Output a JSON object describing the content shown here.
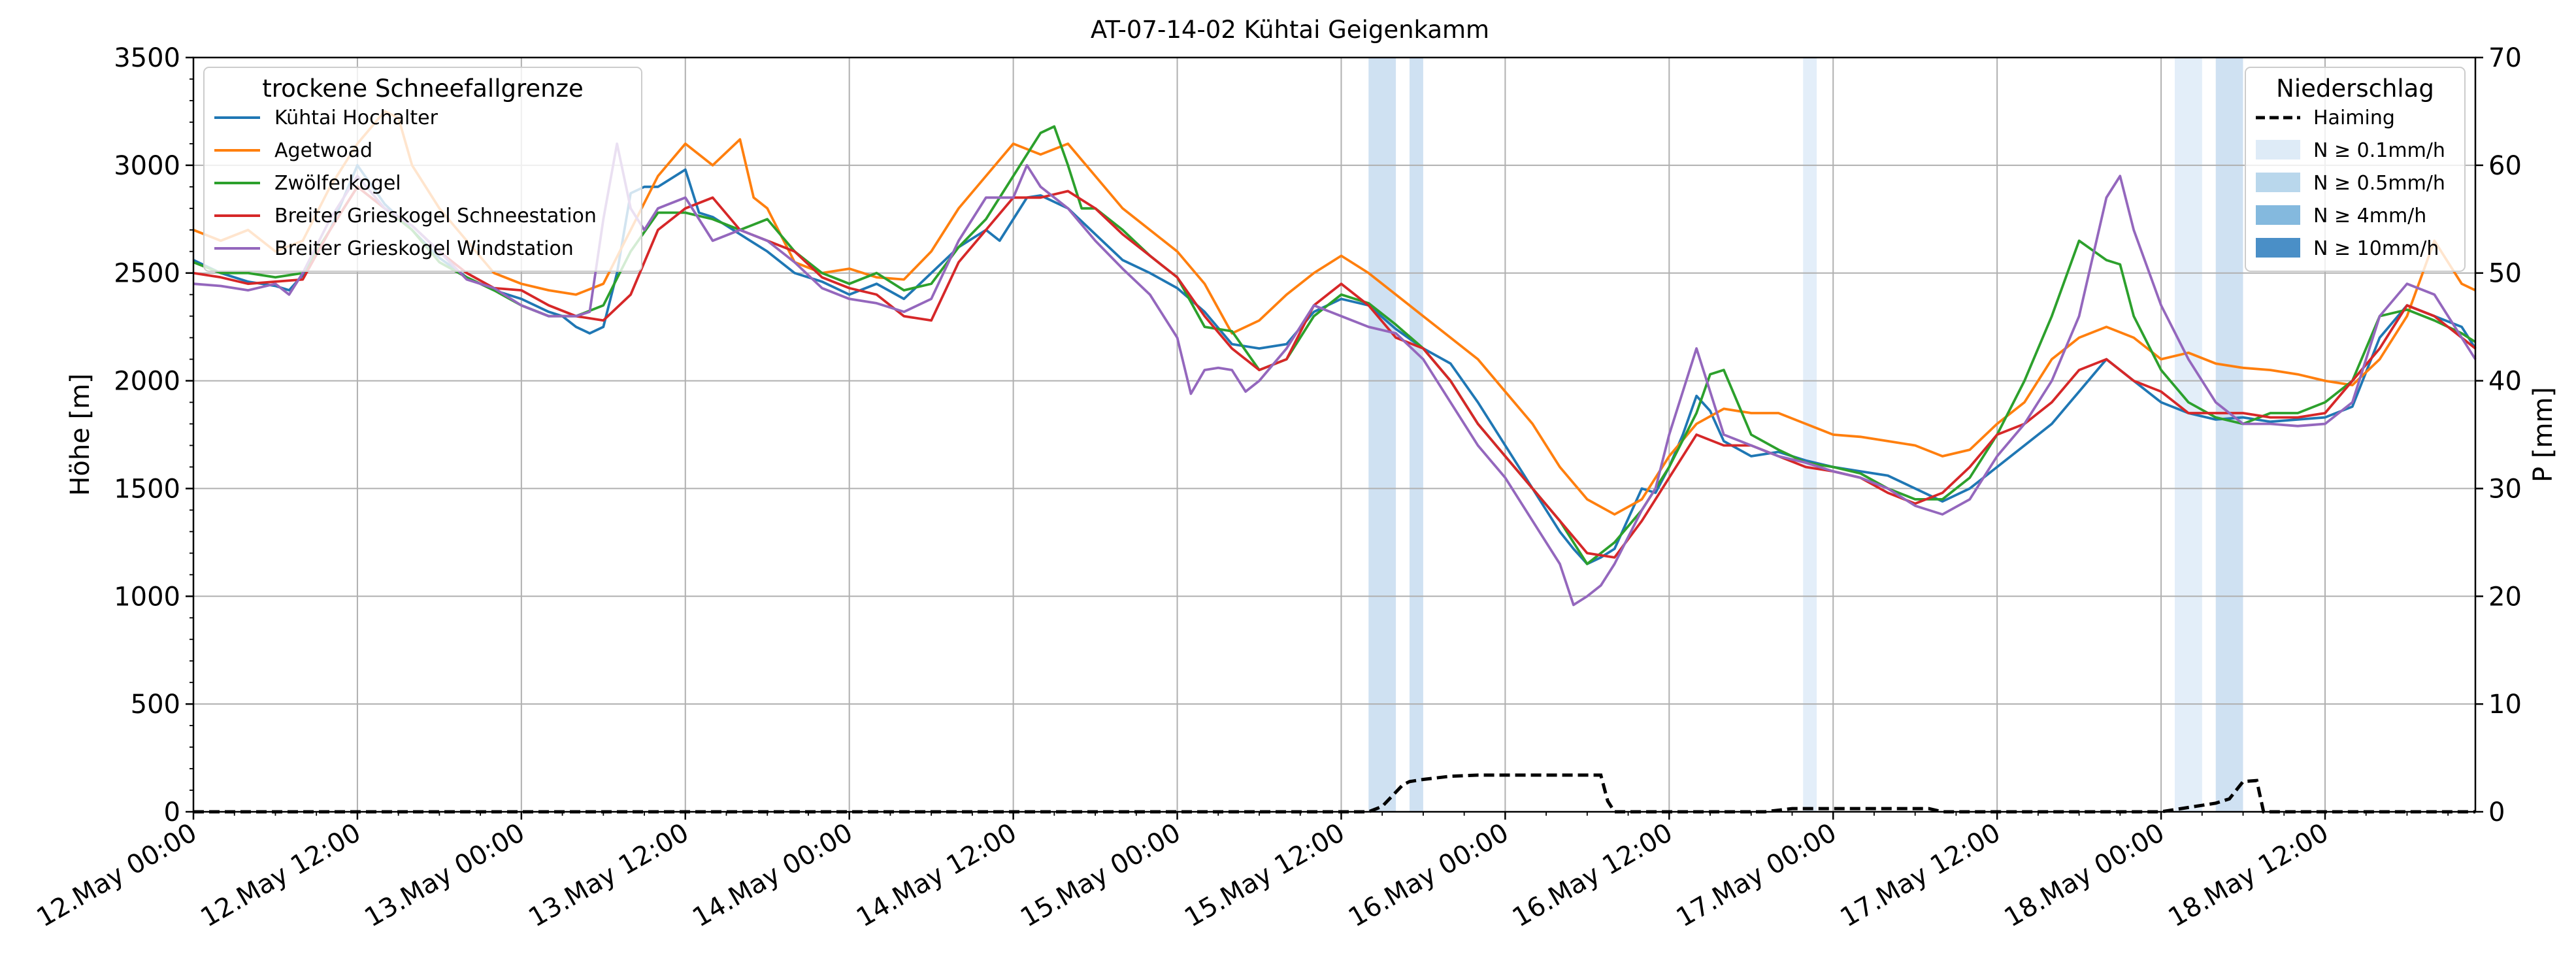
{
  "chart_data": {
    "type": "line",
    "title": "AT-07-14-02 Kühtai Geigenkamm",
    "ylabel": "Höhe [m]",
    "y2label": "P [mm]",
    "ylim": [
      0,
      3500
    ],
    "y2lim": [
      0,
      70
    ],
    "xlim": [
      0,
      167
    ],
    "x_unit": "hours since 12.May 00:00",
    "yticks": [
      0,
      500,
      1000,
      1500,
      2000,
      2500,
      3000,
      3500
    ],
    "y2ticks": [
      0,
      10,
      20,
      30,
      40,
      50,
      60,
      70
    ],
    "xtick_positions": [
      0,
      12,
      24,
      36,
      48,
      60,
      72,
      84,
      96,
      108,
      120,
      132,
      144,
      156
    ],
    "xtick_labels": [
      "12.May 00:00",
      "12.May 12:00",
      "13.May 00:00",
      "13.May 12:00",
      "14.May 00:00",
      "14.May 12:00",
      "15.May 00:00",
      "15.May 12:00",
      "16.May 00:00",
      "16.May 12:00",
      "17.May 00:00",
      "17.May 12:00",
      "18.May 00:00",
      "18.May 12:00"
    ],
    "grid": true,
    "legend_left": {
      "title": "trockene Schneefallgrenze",
      "placement": "upper-left"
    },
    "legend_right": {
      "title": "Niederschlag",
      "placement": "upper-right",
      "entries": [
        {
          "label": "Haiming",
          "kind": "dashed-line",
          "color": "#000000"
        },
        {
          "label": "N ≥ 0.1mm/h",
          "kind": "patch",
          "color": "#deebf7"
        },
        {
          "label": "N ≥ 0.5mm/h",
          "kind": "patch",
          "color": "#b9d7ec"
        },
        {
          "label": "N ≥ 4mm/h",
          "kind": "patch",
          "color": "#84b9de"
        },
        {
          "label": "N ≥ 10mm/h",
          "kind": "patch",
          "color": "#4a8fc7"
        }
      ]
    },
    "precip_bands": [
      {
        "start": 86,
        "end": 88,
        "level": "N ≥ 0.5mm/h",
        "color": "#cfe1f2"
      },
      {
        "start": 89,
        "end": 90,
        "level": "N ≥ 0.5mm/h",
        "color": "#cfe1f2"
      },
      {
        "start": 117.8,
        "end": 118.8,
        "level": "N ≥ 0.1mm/h",
        "color": "#e3eef9"
      },
      {
        "start": 145,
        "end": 147,
        "level": "N ≥ 0.1mm/h",
        "color": "#e3eef9"
      },
      {
        "start": 148,
        "end": 150,
        "level": "N ≥ 0.5mm/h",
        "color": "#cfe1f2"
      }
    ],
    "precip_series": {
      "name": "Haiming",
      "axis": "right",
      "style": "dashed",
      "color": "#000000",
      "x": [
        0,
        86,
        87,
        88.5,
        89,
        90,
        92,
        94,
        100,
        103,
        103.5,
        104,
        115,
        117,
        119,
        127,
        128,
        144,
        146,
        148,
        149,
        150,
        151,
        151.5,
        167
      ],
      "values": [
        0,
        0,
        0.5,
        2.5,
        2.8,
        3.0,
        3.3,
        3.4,
        3.4,
        3.4,
        1.0,
        0,
        0,
        0.3,
        0.3,
        0.3,
        0,
        0,
        0.4,
        0.8,
        1.2,
        2.8,
        2.9,
        0,
        0
      ]
    },
    "series": [
      {
        "name": "Kühtai Hochalter",
        "color": "#1f77b4",
        "x": [
          0,
          2,
          4,
          6,
          7,
          8,
          10,
          12,
          14,
          16,
          18,
          20,
          22,
          24,
          26,
          27,
          28,
          29,
          30,
          31,
          32,
          33,
          34,
          36,
          37,
          38,
          39,
          40,
          42,
          44,
          46,
          48,
          50,
          52,
          54,
          56,
          58,
          59,
          60,
          61,
          62,
          64,
          66,
          68,
          70,
          72,
          74,
          76,
          78,
          80,
          82,
          84,
          86,
          88,
          90,
          92,
          94,
          96,
          98,
          99,
          100,
          101,
          102,
          103,
          104,
          106,
          107,
          108,
          109,
          110,
          111,
          112,
          114,
          116,
          118,
          120,
          122,
          124,
          126,
          128,
          130,
          132,
          134,
          136,
          138,
          140,
          142,
          144,
          146,
          148,
          150,
          152,
          154,
          156,
          158,
          160,
          162,
          164,
          166,
          167
        ],
        "values": [
          2560,
          2500,
          2460,
          2440,
          2420,
          2490,
          2700,
          3000,
          2820,
          2700,
          2570,
          2480,
          2420,
          2380,
          2320,
          2300,
          2250,
          2220,
          2250,
          2500,
          2870,
          2900,
          2900,
          2980,
          2780,
          2760,
          2720,
          2680,
          2600,
          2500,
          2460,
          2400,
          2450,
          2380,
          2500,
          2620,
          2700,
          2650,
          2750,
          2850,
          2860,
          2800,
          2680,
          2560,
          2500,
          2430,
          2320,
          2170,
          2150,
          2170,
          2320,
          2380,
          2350,
          2240,
          2150,
          2080,
          1900,
          1700,
          1500,
          1400,
          1300,
          1220,
          1150,
          1180,
          1220,
          1500,
          1480,
          1600,
          1750,
          1930,
          1860,
          1720,
          1650,
          1670,
          1630,
          1600,
          1580,
          1560,
          1500,
          1440,
          1500,
          1600,
          1700,
          1800,
          1950,
          2100,
          2000,
          1900,
          1850,
          1820,
          1830,
          1810,
          1820,
          1830,
          1880,
          2200,
          2350,
          2300,
          2250,
          2150
        ]
      },
      {
        "name": "Agetwoad",
        "color": "#ff7f0e",
        "x": [
          0,
          2,
          4,
          6,
          8,
          10,
          12,
          14,
          15,
          16,
          18,
          20,
          22,
          24,
          26,
          28,
          30,
          32,
          34,
          36,
          38,
          40,
          41,
          42,
          44,
          46,
          48,
          50,
          52,
          54,
          56,
          58,
          60,
          62,
          64,
          66,
          68,
          70,
          72,
          74,
          76,
          78,
          80,
          82,
          84,
          86,
          88,
          90,
          92,
          94,
          96,
          98,
          100,
          102,
          104,
          106,
          108,
          110,
          112,
          114,
          116,
          118,
          120,
          122,
          124,
          126,
          128,
          130,
          132,
          134,
          136,
          138,
          140,
          142,
          144,
          146,
          148,
          150,
          152,
          154,
          156,
          158,
          160,
          162,
          164,
          166,
          167
        ],
        "values": [
          2700,
          2650,
          2700,
          2600,
          2650,
          2900,
          3100,
          3250,
          3220,
          3000,
          2800,
          2650,
          2500,
          2450,
          2420,
          2400,
          2450,
          2700,
          2950,
          3100,
          3000,
          3120,
          2850,
          2800,
          2550,
          2500,
          2520,
          2480,
          2470,
          2600,
          2800,
          2950,
          3100,
          3050,
          3100,
          2950,
          2800,
          2700,
          2600,
          2450,
          2220,
          2280,
          2400,
          2500,
          2580,
          2500,
          2400,
          2300,
          2200,
          2100,
          1950,
          1800,
          1600,
          1450,
          1380,
          1450,
          1650,
          1800,
          1870,
          1850,
          1850,
          1800,
          1750,
          1740,
          1720,
          1700,
          1650,
          1680,
          1800,
          1900,
          2100,
          2200,
          2250,
          2200,
          2100,
          2130,
          2080,
          2060,
          2050,
          2030,
          2000,
          1980,
          2100,
          2300,
          2650,
          2450,
          2420
        ]
      },
      {
        "name": "Zwölferkogel",
        "color": "#2ca02c",
        "x": [
          0,
          2,
          4,
          6,
          8,
          10,
          12,
          14,
          16,
          18,
          20,
          22,
          24,
          26,
          28,
          30,
          32,
          34,
          36,
          38,
          40,
          42,
          44,
          46,
          48,
          50,
          52,
          54,
          56,
          58,
          60,
          62,
          63,
          64,
          65,
          66,
          68,
          70,
          72,
          74,
          76,
          78,
          80,
          82,
          84,
          86,
          88,
          90,
          92,
          94,
          96,
          98,
          100,
          101,
          102,
          104,
          106,
          108,
          110,
          111,
          112,
          114,
          116,
          118,
          120,
          122,
          124,
          126,
          128,
          130,
          132,
          134,
          136,
          138,
          140,
          141,
          142,
          144,
          146,
          148,
          150,
          152,
          154,
          156,
          158,
          160,
          162,
          164,
          166,
          167
        ],
        "values": [
          2550,
          2500,
          2500,
          2480,
          2500,
          2700,
          2900,
          2800,
          2700,
          2550,
          2480,
          2420,
          2350,
          2300,
          2300,
          2350,
          2600,
          2780,
          2780,
          2750,
          2700,
          2750,
          2600,
          2500,
          2450,
          2500,
          2420,
          2450,
          2620,
          2750,
          2950,
          3150,
          3180,
          3000,
          2800,
          2800,
          2700,
          2580,
          2480,
          2250,
          2230,
          2050,
          2100,
          2300,
          2400,
          2360,
          2260,
          2150,
          2000,
          1800,
          1650,
          1500,
          1350,
          1250,
          1150,
          1250,
          1400,
          1600,
          1850,
          2030,
          2050,
          1750,
          1680,
          1620,
          1600,
          1570,
          1500,
          1450,
          1450,
          1550,
          1750,
          2000,
          2300,
          2650,
          2560,
          2540,
          2300,
          2050,
          1900,
          1830,
          1800,
          1850,
          1850,
          1900,
          2000,
          2300,
          2330,
          2280,
          2220,
          2180
        ]
      },
      {
        "name": "Breiter Grieskogel Schneestation",
        "color": "#d62728",
        "x": [
          0,
          2,
          4,
          6,
          8,
          10,
          12,
          14,
          16,
          18,
          20,
          22,
          24,
          26,
          28,
          30,
          32,
          34,
          36,
          38,
          40,
          42,
          44,
          46,
          48,
          50,
          52,
          54,
          56,
          58,
          60,
          62,
          64,
          66,
          68,
          70,
          72,
          74,
          76,
          78,
          80,
          82,
          84,
          86,
          88,
          90,
          92,
          94,
          96,
          98,
          100,
          102,
          104,
          106,
          108,
          110,
          112,
          114,
          116,
          118,
          120,
          122,
          124,
          126,
          128,
          130,
          132,
          134,
          136,
          138,
          140,
          142,
          144,
          146,
          148,
          150,
          152,
          154,
          156,
          158,
          160,
          162,
          164,
          166,
          167
        ],
        "values": [
          2500,
          2480,
          2450,
          2460,
          2470,
          2700,
          2900,
          2800,
          2720,
          2600,
          2500,
          2430,
          2420,
          2350,
          2300,
          2280,
          2400,
          2700,
          2800,
          2850,
          2700,
          2650,
          2600,
          2480,
          2430,
          2400,
          2300,
          2280,
          2550,
          2700,
          2850,
          2850,
          2880,
          2800,
          2680,
          2580,
          2480,
          2300,
          2150,
          2050,
          2100,
          2350,
          2450,
          2350,
          2200,
          2150,
          2000,
          1800,
          1650,
          1500,
          1350,
          1200,
          1180,
          1350,
          1550,
          1750,
          1700,
          1700,
          1650,
          1600,
          1580,
          1550,
          1480,
          1430,
          1480,
          1600,
          1750,
          1800,
          1900,
          2050,
          2100,
          2000,
          1950,
          1850,
          1850,
          1850,
          1830,
          1830,
          1850,
          2000,
          2150,
          2350,
          2300,
          2200,
          2150
        ]
      },
      {
        "name": "Breiter Grieskogel Windstation",
        "color": "#9467bd",
        "x": [
          0,
          2,
          4,
          6,
          7,
          8,
          10,
          12,
          14,
          16,
          18,
          20,
          22,
          24,
          26,
          28,
          29,
          30,
          31,
          32,
          33,
          34,
          36,
          38,
          40,
          42,
          44,
          46,
          48,
          50,
          52,
          54,
          56,
          58,
          60,
          61,
          62,
          64,
          66,
          68,
          70,
          72,
          73,
          74,
          75,
          76,
          77,
          78,
          80,
          82,
          84,
          86,
          88,
          90,
          92,
          94,
          96,
          98,
          100,
          101,
          102,
          103,
          104,
          106,
          107,
          108,
          110,
          112,
          114,
          116,
          118,
          120,
          122,
          124,
          126,
          128,
          130,
          132,
          134,
          136,
          138,
          140,
          141,
          142,
          144,
          146,
          148,
          150,
          152,
          154,
          156,
          158,
          160,
          162,
          164,
          166,
          167
        ],
        "values": [
          2450,
          2440,
          2420,
          2450,
          2400,
          2500,
          2750,
          2950,
          2800,
          2720,
          2600,
          2470,
          2430,
          2350,
          2300,
          2300,
          2320,
          2750,
          3100,
          2800,
          2700,
          2800,
          2850,
          2650,
          2700,
          2650,
          2550,
          2430,
          2380,
          2360,
          2320,
          2380,
          2650,
          2850,
          2850,
          3000,
          2900,
          2800,
          2650,
          2520,
          2400,
          2200,
          1940,
          2050,
          2060,
          2050,
          1950,
          2000,
          2150,
          2350,
          2300,
          2250,
          2220,
          2100,
          1900,
          1700,
          1550,
          1350,
          1150,
          960,
          1000,
          1050,
          1150,
          1400,
          1500,
          1750,
          2150,
          1750,
          1700,
          1650,
          1620,
          1580,
          1550,
          1500,
          1420,
          1380,
          1450,
          1650,
          1800,
          2000,
          2300,
          2850,
          2950,
          2700,
          2350,
          2100,
          1900,
          1800,
          1800,
          1790,
          1800,
          1900,
          2300,
          2450,
          2400,
          2200,
          2100
        ]
      }
    ]
  }
}
